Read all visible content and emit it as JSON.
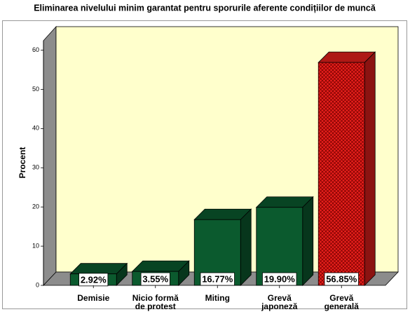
{
  "chart_data": {
    "type": "bar3d",
    "title": "Eliminarea nivelului minim garantat pentru sporurile aferente condițiilor de muncă",
    "ylabel": "Procent",
    "categories": [
      "Demisie",
      "Nicio formă de protest",
      "Miting",
      "Grevă japoneză",
      "Grevă generală"
    ],
    "values": [
      2.92,
      3.55,
      16.77,
      19.9,
      56.85
    ],
    "value_labels": [
      "2.92%",
      "3.55%",
      "16.77%",
      "19.90%",
      "56.85%"
    ],
    "colors": [
      "#0b5a2e",
      "#0b5a2e",
      "#0b5a2e",
      "#0b5a2e",
      "#e8201c"
    ],
    "hatch": [
      false,
      false,
      false,
      false,
      true
    ],
    "ylim": [
      0,
      66
    ],
    "yticks": [
      0,
      10,
      20,
      30,
      40,
      50,
      60
    ]
  }
}
